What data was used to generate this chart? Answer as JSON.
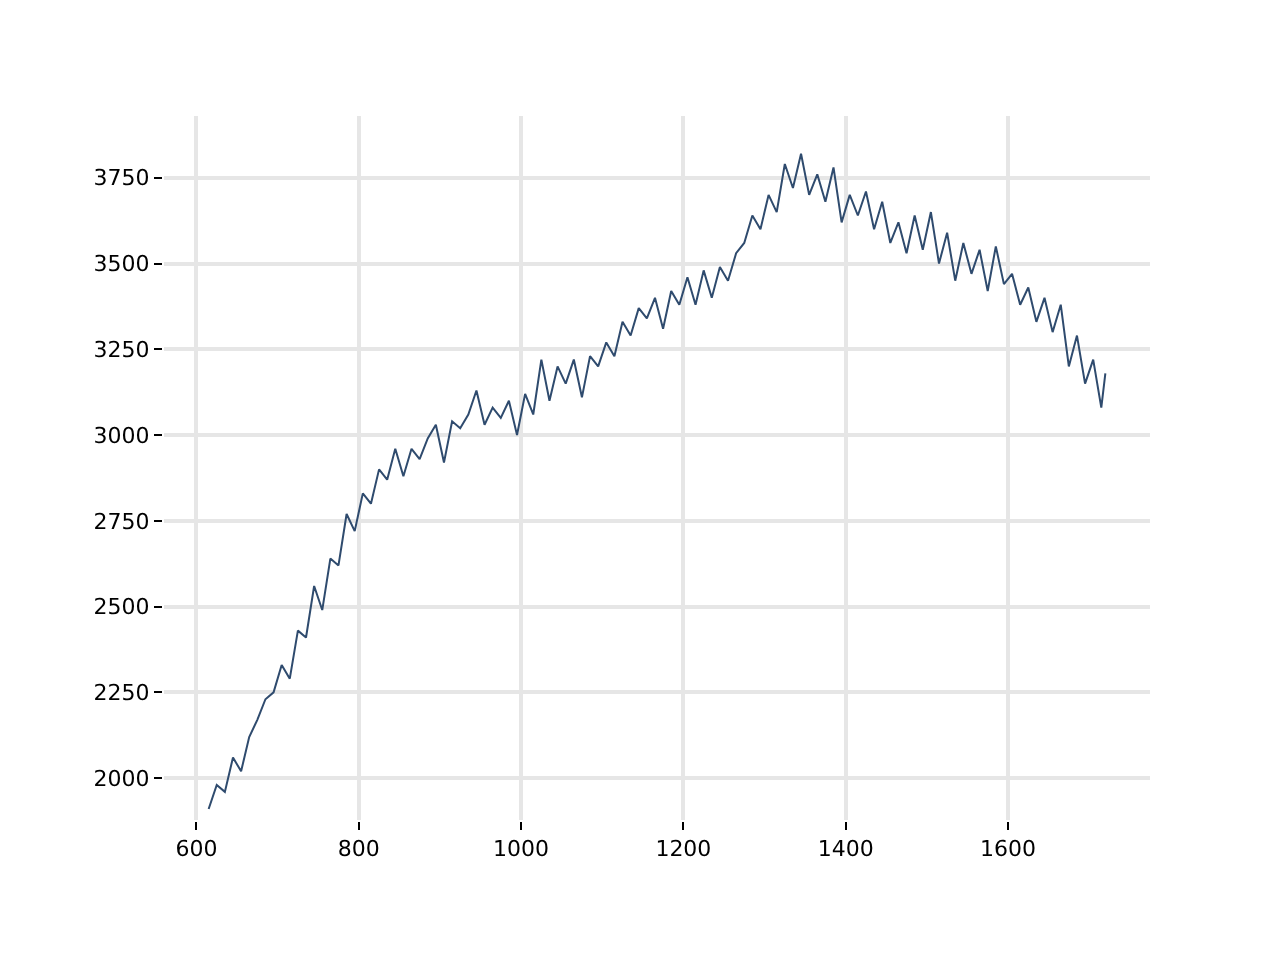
{
  "chart_data": {
    "type": "line",
    "x": [
      615,
      625,
      635,
      645,
      655,
      665,
      675,
      685,
      695,
      705,
      715,
      725,
      735,
      745,
      755,
      765,
      775,
      785,
      795,
      805,
      815,
      825,
      835,
      845,
      855,
      865,
      875,
      885,
      895,
      905,
      915,
      925,
      935,
      945,
      955,
      965,
      975,
      985,
      995,
      1005,
      1015,
      1025,
      1035,
      1045,
      1055,
      1065,
      1075,
      1085,
      1095,
      1105,
      1115,
      1125,
      1135,
      1145,
      1155,
      1165,
      1175,
      1185,
      1195,
      1205,
      1215,
      1225,
      1235,
      1245,
      1255,
      1265,
      1275,
      1285,
      1295,
      1305,
      1315,
      1325,
      1335,
      1345,
      1355,
      1365,
      1375,
      1385,
      1395,
      1405,
      1415,
      1425,
      1435,
      1445,
      1455,
      1465,
      1475,
      1485,
      1495,
      1505,
      1515,
      1525,
      1535,
      1545,
      1555,
      1565,
      1575,
      1585,
      1595,
      1605,
      1615,
      1625,
      1635,
      1645,
      1655,
      1665,
      1675,
      1685,
      1695,
      1705,
      1715,
      1720
    ],
    "series": [
      {
        "color": "#2f4b6e",
        "values": [
          1910,
          1980,
          1960,
          2060,
          2020,
          2120,
          2170,
          2230,
          2250,
          2330,
          2290,
          2430,
          2410,
          2560,
          2490,
          2640,
          2620,
          2770,
          2720,
          2830,
          2800,
          2900,
          2870,
          2960,
          2880,
          2960,
          2930,
          2990,
          3030,
          2920,
          3040,
          3020,
          3060,
          3130,
          3030,
          3080,
          3050,
          3100,
          3000,
          3120,
          3060,
          3220,
          3100,
          3200,
          3150,
          3220,
          3110,
          3230,
          3200,
          3270,
          3230,
          3330,
          3290,
          3370,
          3340,
          3400,
          3310,
          3420,
          3380,
          3460,
          3380,
          3480,
          3400,
          3490,
          3450,
          3530,
          3560,
          3640,
          3600,
          3700,
          3650,
          3790,
          3720,
          3820,
          3700,
          3760,
          3680,
          3780,
          3620,
          3700,
          3640,
          3710,
          3600,
          3680,
          3560,
          3620,
          3530,
          3640,
          3540,
          3650,
          3500,
          3590,
          3450,
          3560,
          3470,
          3540,
          3420,
          3550,
          3440,
          3470,
          3380,
          3430,
          3330,
          3400,
          3300,
          3380,
          3200,
          3290,
          3150,
          3220,
          3080,
          3180
        ]
      }
    ],
    "xlim": [
      560,
      1775
    ],
    "ylim": [
      1878,
      3930
    ],
    "xticks": [
      600,
      800,
      1000,
      1200,
      1400,
      1600
    ],
    "yticks": [
      2000,
      2250,
      2500,
      2750,
      3000,
      3250,
      3500,
      3750
    ],
    "grid": true,
    "line_style": "solid",
    "marker": "none"
  }
}
